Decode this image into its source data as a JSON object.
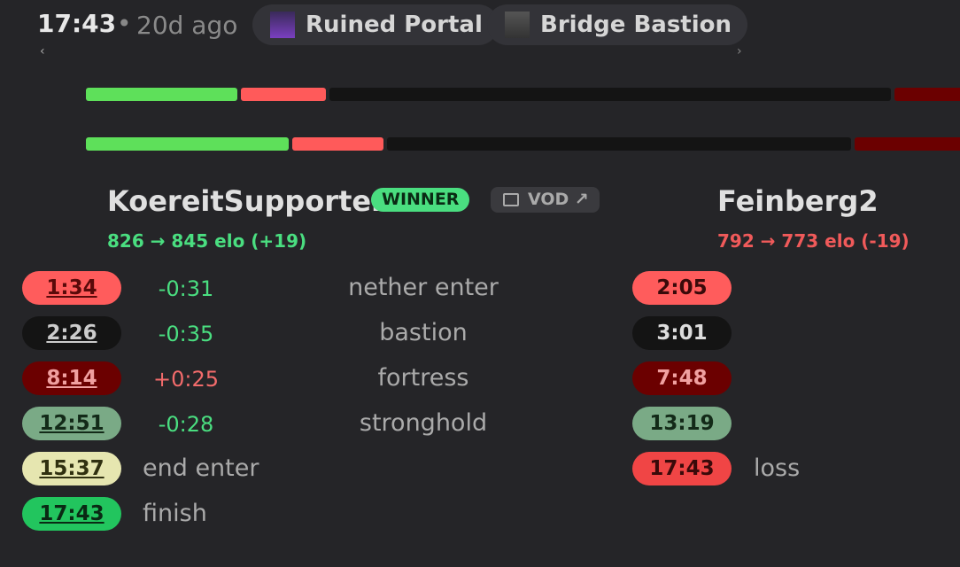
{
  "header": {
    "time": "17:43",
    "ago": "20d ago",
    "tags": [
      "Ruined Portal",
      "Bridge Bastion"
    ],
    "prev": "‹",
    "next": "›"
  },
  "players": [
    {
      "name": "KoereitSupporter",
      "badge": "WINNER",
      "vod": "VOD ↗",
      "elo": "826 → 845 elo (+19)"
    },
    {
      "name": "Feinberg2",
      "elo": "792 → 773 elo (-19)"
    }
  ],
  "splits": [
    {
      "p1": "1:34",
      "diff": "-0:31",
      "label": "nether enter",
      "p2": "2:05"
    },
    {
      "p1": "2:26",
      "diff": "-0:35",
      "label": "bastion",
      "p2": "3:01"
    },
    {
      "p1": "8:14",
      "diff": "+0:25",
      "label": "fortress",
      "p2": "7:48"
    },
    {
      "p1": "12:51",
      "diff": "-0:28",
      "label": "stronghold",
      "p2": "13:19"
    }
  ],
  "p1_extra": [
    {
      "time": "15:37",
      "label": "end enter"
    },
    {
      "time": "17:43",
      "label": "finish"
    }
  ],
  "p2_extra": [
    {
      "time": "17:43",
      "label": "loss"
    }
  ]
}
